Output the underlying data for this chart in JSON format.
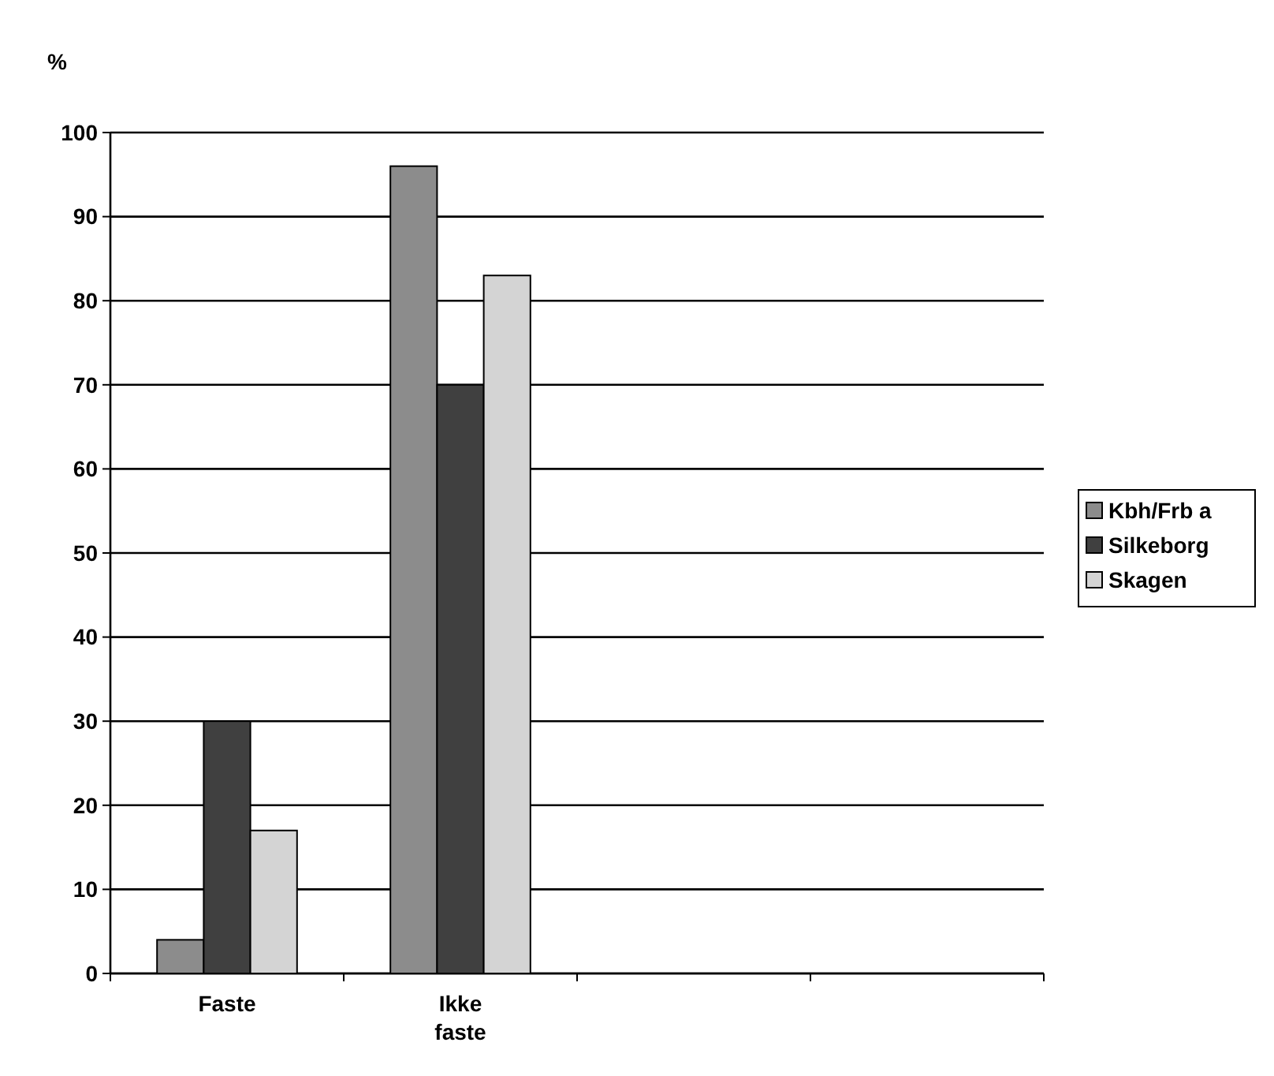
{
  "chart_data": {
    "type": "bar",
    "ylabel": "%",
    "categories": [
      "Faste",
      "Ikke faste",
      null,
      null
    ],
    "series": [
      {
        "name": "Kbh/Frb a",
        "color": "#8c8c8c",
        "values": [
          4,
          96,
          null,
          null
        ]
      },
      {
        "name": "Silkeborg",
        "color": "#404040",
        "values": [
          30,
          70,
          null,
          null
        ]
      },
      {
        "name": "Skagen",
        "color": "#d4d4d4",
        "values": [
          17,
          83,
          null,
          null
        ]
      }
    ],
    "ylim": [
      0,
      100
    ],
    "yticks": [
      0,
      10,
      20,
      30,
      40,
      50,
      60,
      70,
      80,
      90,
      100
    ],
    "grid": "y",
    "legend": "right"
  }
}
